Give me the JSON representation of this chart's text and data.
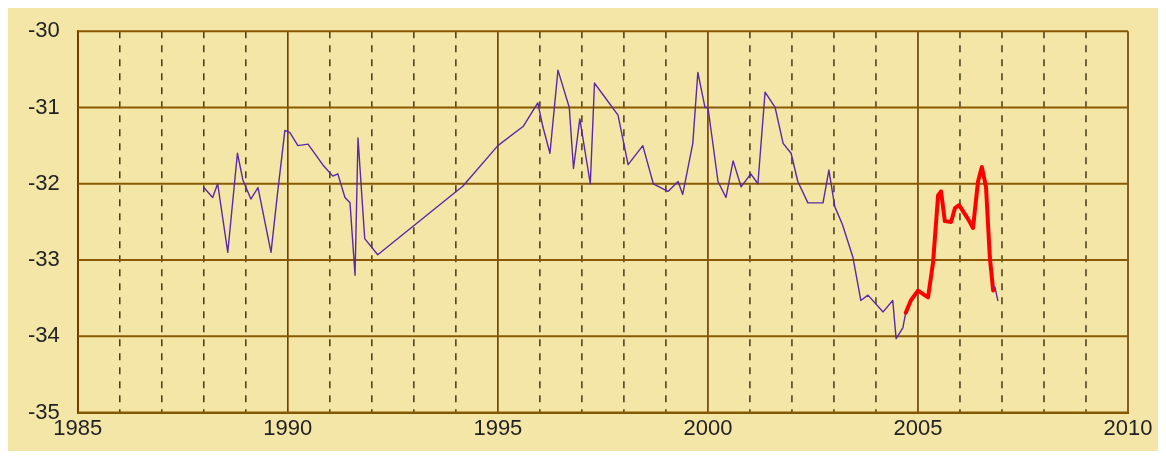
{
  "chart_data": {
    "type": "line",
    "xlim": [
      1985,
      2010
    ],
    "ylim": [
      -35,
      -30
    ],
    "xticks": [
      1985,
      {
        "value": 1986,
        "label": null
      },
      {
        "value": 1987,
        "label": null
      },
      {
        "value": 1988,
        "label": null
      },
      {
        "value": 1989,
        "label": null
      },
      1990,
      {
        "value": 1991,
        "label": null
      },
      {
        "value": 1992,
        "label": null
      },
      {
        "value": 1993,
        "label": null
      },
      {
        "value": 1994,
        "label": null
      },
      1995,
      {
        "value": 1996,
        "label": null
      },
      {
        "value": 1997,
        "label": null
      },
      {
        "value": 1998,
        "label": null
      },
      {
        "value": 1999,
        "label": null
      },
      2000,
      {
        "value": 2001,
        "label": null
      },
      {
        "value": 2002,
        "label": null
      },
      {
        "value": 2003,
        "label": null
      },
      {
        "value": 2004,
        "label": null
      },
      2005,
      {
        "value": 2006,
        "label": null
      },
      {
        "value": 2007,
        "label": null
      },
      {
        "value": 2008,
        "label": null
      },
      {
        "value": 2009,
        "label": null
      },
      2010
    ],
    "yticks": [
      -35,
      -34,
      -33,
      -32,
      -31,
      -30
    ],
    "grid": true,
    "legend": false,
    "marker": "none",
    "line_style": "solid",
    "series": [
      {
        "color": "#5a28a8",
        "x": [
          1988.0,
          1988.21,
          1988.33,
          1988.57,
          1988.8,
          1988.93,
          1989.12,
          1989.29,
          1989.6,
          1989.76,
          1989.93,
          1990.05,
          1990.24,
          1990.48,
          1990.83,
          1991.07,
          1991.19,
          1991.36,
          1991.48,
          1991.6,
          1991.67,
          1991.83,
          1992.14,
          1994.17,
          1995.0,
          1995.6,
          1995.95,
          1996.07,
          1996.24,
          1996.43,
          1996.7,
          1996.8,
          1996.95,
          1997.2,
          1997.3,
          1997.5,
          1997.86,
          1998.1,
          1998.45,
          1998.7,
          1999.05,
          1999.29,
          1999.4,
          1999.64,
          1999.76,
          1999.93,
          2000.0,
          2000.1,
          2000.24,
          2000.43,
          2000.6,
          2000.79,
          2001.02,
          2001.19,
          2001.36,
          2001.6,
          2001.79,
          2001.98,
          2002.14,
          2002.38,
          2002.74,
          2002.88,
          2003.02,
          2003.2,
          2003.45,
          2003.64,
          2003.81,
          2004.17,
          2004.4,
          2004.48,
          2004.64,
          2004.71,
          2005.5,
          2006.83,
          2006.9
        ],
        "values": [
          -32.05,
          -32.18,
          -32.0,
          -32.9,
          -31.6,
          -31.95,
          -32.2,
          -32.05,
          -32.9,
          -32.1,
          -31.3,
          -31.33,
          -31.5,
          -31.48,
          -31.75,
          -31.9,
          -31.87,
          -32.18,
          -32.25,
          -33.2,
          -31.4,
          -32.72,
          -32.93,
          -32.03,
          -31.5,
          -31.25,
          -30.94,
          -31.25,
          -31.6,
          -30.51,
          -31.0,
          -31.8,
          -31.15,
          -32.0,
          -30.68,
          -30.83,
          -31.1,
          -31.75,
          -31.5,
          -32.0,
          -32.1,
          -31.97,
          -32.14,
          -31.47,
          -30.54,
          -31.0,
          -31.0,
          -31.4,
          -31.97,
          -32.18,
          -31.7,
          -32.04,
          -31.87,
          -32.0,
          -30.8,
          -31.0,
          -31.47,
          -31.6,
          -31.97,
          -32.25,
          -32.25,
          -31.82,
          -32.3,
          -32.53,
          -32.96,
          -33.53,
          -33.46,
          -33.68,
          -33.53,
          -34.03,
          -33.89,
          -33.69,
          null,
          -33.35,
          -33.53
        ]
      },
      {
        "color": "#ff0000",
        "x": [
          2004.71,
          2004.83,
          2005.0,
          2005.24,
          2005.36,
          2005.48,
          2005.55,
          2005.64,
          2005.79,
          2005.88,
          2005.98,
          2006.19,
          2006.31,
          2006.43,
          2006.52,
          2006.62,
          2006.71,
          2006.79
        ],
        "values": [
          -33.69,
          -33.53,
          -33.4,
          -33.49,
          -33.03,
          -32.15,
          -32.1,
          -32.49,
          -32.5,
          -32.32,
          -32.28,
          -32.46,
          -32.58,
          -31.97,
          -31.78,
          -32.04,
          -32.96,
          -33.4
        ]
      }
    ]
  }
}
